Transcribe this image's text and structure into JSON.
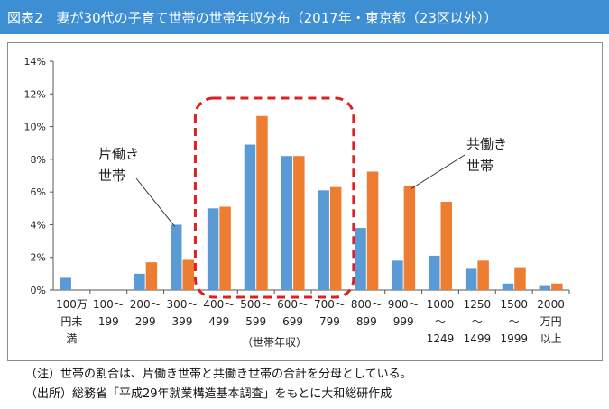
{
  "title": "図表2　妻が30代の子育て世帯の世帯年収分布（2017年・東京都（23区以外））",
  "chart_data": {
    "type": "bar",
    "categories": [
      [
        "100万",
        "円未",
        "満"
      ],
      [
        "100～",
        "199"
      ],
      [
        "200～",
        "299"
      ],
      [
        "300～",
        "399"
      ],
      [
        "400～",
        "499"
      ],
      [
        "500～",
        "599"
      ],
      [
        "600～",
        "699"
      ],
      [
        "700～",
        "799"
      ],
      [
        "800～",
        "899"
      ],
      [
        "900～",
        "999"
      ],
      [
        "1000",
        "～",
        "1249"
      ],
      [
        "1250",
        "～",
        "1499"
      ],
      [
        "1500",
        "～",
        "1999"
      ],
      [
        "2000",
        "万円",
        "以上"
      ]
    ],
    "series": [
      {
        "name": "片働き世帯",
        "color": "#5b9bd5",
        "values": [
          0.75,
          0,
          1.0,
          4.0,
          5.0,
          8.9,
          8.2,
          6.1,
          3.8,
          1.8,
          2.1,
          1.3,
          0.4,
          0.3
        ]
      },
      {
        "name": "共働き世帯",
        "color": "#ed7d31",
        "values": [
          0,
          0,
          1.7,
          1.85,
          5.1,
          10.65,
          8.2,
          6.3,
          7.25,
          6.4,
          5.4,
          1.8,
          1.4,
          0.4
        ]
      }
    ],
    "yticks": [
      "0%",
      "2%",
      "4%",
      "6%",
      "8%",
      "10%",
      "12%",
      "14%"
    ],
    "ylim": [
      0,
      14
    ],
    "xlabel": "（世帯年収）",
    "ylabel": "",
    "highlight_range": [
      4,
      7
    ],
    "highlight_color": "#e02020",
    "annotations": [
      {
        "lines": [
          "片働き",
          "世帯"
        ],
        "series_index": 0,
        "target_index": 3
      },
      {
        "lines": [
          "共働き",
          "世帯"
        ],
        "series_index": 1,
        "target_index": 9
      }
    ]
  },
  "notes": [
    "（注）世帯の割合は、片働き世帯と共働き世帯の合計を分母としている。",
    "（出所）総務省「平成29年就業構造基本調査」をもとに大和総研作成"
  ]
}
